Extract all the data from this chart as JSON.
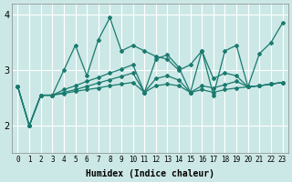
{
  "xlabel": "Humidex (Indice chaleur)",
  "x_values": [
    0,
    1,
    2,
    3,
    4,
    5,
    6,
    7,
    8,
    9,
    10,
    11,
    12,
    13,
    14,
    15,
    16,
    17,
    18,
    19,
    20,
    21,
    22,
    23
  ],
  "series": [
    [
      2.7,
      2.0,
      2.55,
      2.55,
      3.0,
      3.45,
      2.9,
      3.55,
      3.95,
      3.35,
      3.45,
      3.35,
      3.25,
      3.2,
      3.0,
      3.1,
      3.35,
      2.55,
      3.35,
      3.45,
      2.7,
      3.3,
      3.5,
      3.85
    ],
    [
      2.7,
      2.0,
      2.55,
      2.55,
      2.65,
      2.72,
      2.8,
      2.87,
      2.95,
      3.02,
      3.1,
      2.6,
      3.2,
      3.28,
      3.05,
      2.6,
      3.35,
      2.85,
      2.95,
      2.9,
      2.7,
      2.72,
      2.75,
      2.78
    ],
    [
      2.7,
      2.0,
      2.55,
      2.55,
      2.6,
      2.65,
      2.71,
      2.77,
      2.83,
      2.89,
      2.95,
      2.6,
      2.85,
      2.9,
      2.82,
      2.6,
      2.72,
      2.68,
      2.74,
      2.8,
      2.7,
      2.72,
      2.75,
      2.78
    ],
    [
      2.7,
      2.0,
      2.55,
      2.55,
      2.58,
      2.62,
      2.65,
      2.68,
      2.72,
      2.75,
      2.78,
      2.6,
      2.72,
      2.75,
      2.72,
      2.6,
      2.65,
      2.6,
      2.65,
      2.68,
      2.7,
      2.72,
      2.75,
      2.78
    ]
  ],
  "line_color": "#1a7a6e",
  "marker": "D",
  "markersize": 2.0,
  "linewidth": 0.9,
  "bg_color": "#cce8e6",
  "plot_bg": "#cce8e6",
  "grid_color": "#ffffff",
  "ylim": [
    1.5,
    4.2
  ],
  "yticks": [
    2,
    3,
    4
  ],
  "xlim": [
    -0.5,
    23.5
  ],
  "xticks": [
    0,
    1,
    2,
    3,
    4,
    5,
    6,
    7,
    8,
    9,
    10,
    11,
    12,
    13,
    14,
    15,
    16,
    17,
    18,
    19,
    20,
    21,
    22,
    23
  ]
}
